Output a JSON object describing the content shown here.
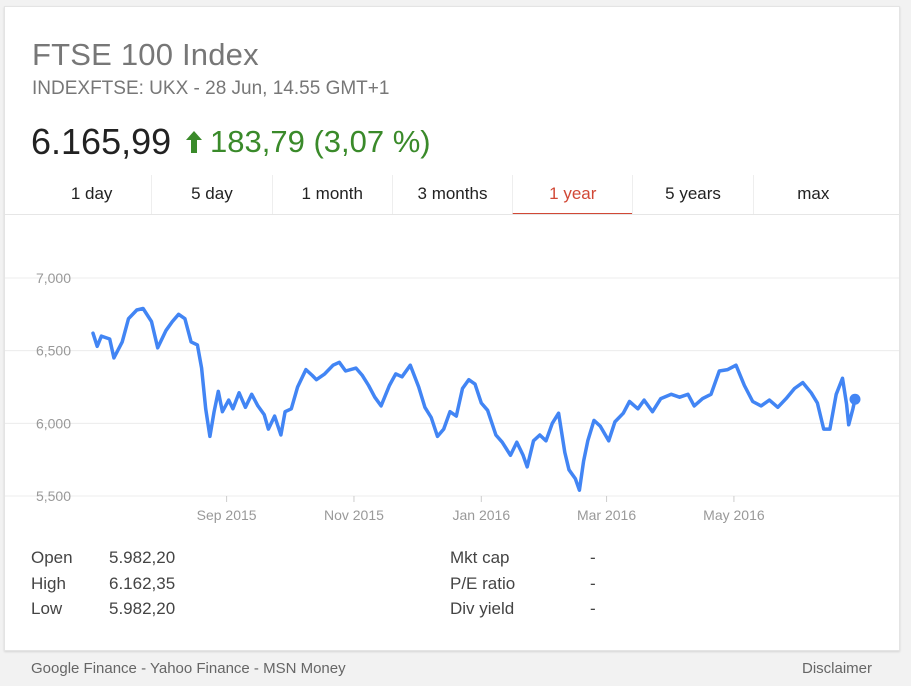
{
  "header": {
    "title": "FTSE 100 Index",
    "subtitle": "INDEXFTSE: UKX - 28 Jun, 14.55 GMT+1",
    "price": "6.165,99",
    "change": "183,79 (3,07 %)",
    "change_color": "#3a8a2a",
    "arrow_icon": "up-arrow-icon"
  },
  "tabs": [
    {
      "label": "1 day",
      "active": false
    },
    {
      "label": "5 day",
      "active": false
    },
    {
      "label": "1 month",
      "active": false
    },
    {
      "label": "3 months",
      "active": false
    },
    {
      "label": "1 year",
      "active": true
    },
    {
      "label": "5 years",
      "active": false
    },
    {
      "label": "max",
      "active": false
    }
  ],
  "chart_data": {
    "type": "line",
    "ylim": [
      5500,
      7000
    ],
    "yticks": [
      "7,000",
      "6,500",
      "6,000",
      "5,500"
    ],
    "ytick_values": [
      7000,
      6500,
      6000,
      5500
    ],
    "xlim": [
      "2015-06-29",
      "2016-06-28"
    ],
    "xticks": [
      {
        "label": "Sep 2015",
        "date": "2015-09-01"
      },
      {
        "label": "Nov 2015",
        "date": "2015-11-01"
      },
      {
        "label": "Jan 2016",
        "date": "2016-01-01"
      },
      {
        "label": "Mar 2016",
        "date": "2016-03-01"
      },
      {
        "label": "May 2016",
        "date": "2016-05-01"
      }
    ],
    "grid": true,
    "line_color": "#4285f4",
    "series": [
      {
        "values": [
          [
            "2015-06-29",
            6620
          ],
          [
            "2015-07-01",
            6530
          ],
          [
            "2015-07-03",
            6600
          ],
          [
            "2015-07-07",
            6580
          ],
          [
            "2015-07-09",
            6450
          ],
          [
            "2015-07-13",
            6560
          ],
          [
            "2015-07-16",
            6720
          ],
          [
            "2015-07-20",
            6780
          ],
          [
            "2015-07-23",
            6790
          ],
          [
            "2015-07-27",
            6700
          ],
          [
            "2015-07-30",
            6520
          ],
          [
            "2015-08-03",
            6640
          ],
          [
            "2015-08-06",
            6700
          ],
          [
            "2015-08-09",
            6750
          ],
          [
            "2015-08-12",
            6720
          ],
          [
            "2015-08-15",
            6560
          ],
          [
            "2015-08-18",
            6540
          ],
          [
            "2015-08-20",
            6380
          ],
          [
            "2015-08-22",
            6100
          ],
          [
            "2015-08-24",
            5910
          ],
          [
            "2015-08-26",
            6080
          ],
          [
            "2015-08-28",
            6220
          ],
          [
            "2015-08-30",
            6080
          ],
          [
            "2015-09-02",
            6160
          ],
          [
            "2015-09-04",
            6100
          ],
          [
            "2015-09-07",
            6210
          ],
          [
            "2015-09-10",
            6110
          ],
          [
            "2015-09-13",
            6200
          ],
          [
            "2015-09-16",
            6120
          ],
          [
            "2015-09-19",
            6060
          ],
          [
            "2015-09-21",
            5960
          ],
          [
            "2015-09-24",
            6050
          ],
          [
            "2015-09-27",
            5920
          ],
          [
            "2015-09-29",
            6080
          ],
          [
            "2015-10-02",
            6100
          ],
          [
            "2015-10-05",
            6250
          ],
          [
            "2015-10-09",
            6370
          ],
          [
            "2015-10-12",
            6330
          ],
          [
            "2015-10-14",
            6300
          ],
          [
            "2015-10-18",
            6340
          ],
          [
            "2015-10-22",
            6400
          ],
          [
            "2015-10-25",
            6420
          ],
          [
            "2015-10-28",
            6360
          ],
          [
            "2015-11-02",
            6380
          ],
          [
            "2015-11-05",
            6330
          ],
          [
            "2015-11-08",
            6260
          ],
          [
            "2015-11-11",
            6180
          ],
          [
            "2015-11-14",
            6120
          ],
          [
            "2015-11-18",
            6260
          ],
          [
            "2015-11-21",
            6340
          ],
          [
            "2015-11-24",
            6320
          ],
          [
            "2015-11-28",
            6400
          ],
          [
            "2015-12-02",
            6250
          ],
          [
            "2015-12-05",
            6110
          ],
          [
            "2015-12-08",
            6040
          ],
          [
            "2015-12-11",
            5910
          ],
          [
            "2015-12-14",
            5960
          ],
          [
            "2015-12-17",
            6080
          ],
          [
            "2015-12-20",
            6050
          ],
          [
            "2015-12-23",
            6240
          ],
          [
            "2015-12-26",
            6300
          ],
          [
            "2015-12-29",
            6270
          ],
          [
            "2016-01-01",
            6140
          ],
          [
            "2016-01-04",
            6090
          ],
          [
            "2016-01-08",
            5920
          ],
          [
            "2016-01-11",
            5870
          ],
          [
            "2016-01-15",
            5780
          ],
          [
            "2016-01-18",
            5870
          ],
          [
            "2016-01-21",
            5780
          ],
          [
            "2016-01-23",
            5700
          ],
          [
            "2016-01-26",
            5880
          ],
          [
            "2016-01-29",
            5920
          ],
          [
            "2016-02-01",
            5880
          ],
          [
            "2016-02-04",
            6000
          ],
          [
            "2016-02-07",
            6070
          ],
          [
            "2016-02-10",
            5800
          ],
          [
            "2016-02-12",
            5680
          ],
          [
            "2016-02-15",
            5620
          ],
          [
            "2016-02-17",
            5540
          ],
          [
            "2016-02-19",
            5740
          ],
          [
            "2016-02-21",
            5880
          ],
          [
            "2016-02-24",
            6020
          ],
          [
            "2016-02-27",
            5980
          ],
          [
            "2016-03-02",
            5880
          ],
          [
            "2016-03-05",
            6010
          ],
          [
            "2016-03-09",
            6070
          ],
          [
            "2016-03-12",
            6150
          ],
          [
            "2016-03-16",
            6100
          ],
          [
            "2016-03-19",
            6160
          ],
          [
            "2016-03-23",
            6080
          ],
          [
            "2016-03-27",
            6170
          ],
          [
            "2016-04-01",
            6200
          ],
          [
            "2016-04-05",
            6180
          ],
          [
            "2016-04-09",
            6200
          ],
          [
            "2016-04-12",
            6120
          ],
          [
            "2016-04-16",
            6170
          ],
          [
            "2016-04-20",
            6200
          ],
          [
            "2016-04-24",
            6360
          ],
          [
            "2016-04-28",
            6370
          ],
          [
            "2016-05-02",
            6400
          ],
          [
            "2016-05-06",
            6260
          ],
          [
            "2016-05-10",
            6150
          ],
          [
            "2016-05-14",
            6120
          ],
          [
            "2016-05-18",
            6160
          ],
          [
            "2016-05-22",
            6110
          ],
          [
            "2016-05-26",
            6170
          ],
          [
            "2016-05-30",
            6240
          ],
          [
            "2016-06-03",
            6280
          ],
          [
            "2016-06-07",
            6210
          ],
          [
            "2016-06-10",
            6140
          ],
          [
            "2016-06-13",
            5960
          ],
          [
            "2016-06-16",
            5960
          ],
          [
            "2016-06-19",
            6200
          ],
          [
            "2016-06-22",
            6310
          ],
          [
            "2016-06-24",
            6130
          ],
          [
            "2016-06-25",
            5990
          ],
          [
            "2016-06-27",
            6100
          ],
          [
            "2016-06-28",
            6166
          ]
        ]
      }
    ]
  },
  "stats": {
    "left": [
      {
        "label": "Open",
        "value": "5.982,20"
      },
      {
        "label": "High",
        "value": "6.162,35"
      },
      {
        "label": "Low",
        "value": "5.982,20"
      }
    ],
    "right": [
      {
        "label": "Mkt cap",
        "value": "-"
      },
      {
        "label": "P/E ratio",
        "value": "-"
      },
      {
        "label": "Div yield",
        "value": "-"
      }
    ]
  },
  "footer": {
    "sources": "Google Finance - Yahoo Finance - MSN Money",
    "disclaimer": "Disclaimer"
  }
}
